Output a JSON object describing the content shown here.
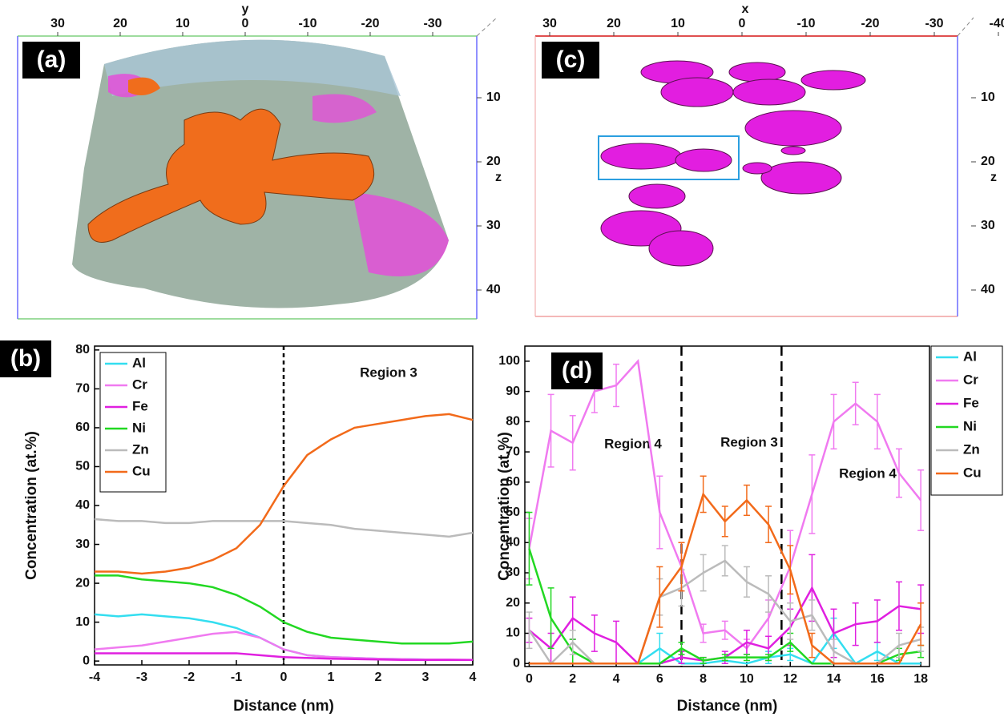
{
  "images": [
    {
      "panel_label": "(a)",
      "top_axis_label": "y",
      "top_ticks": [
        30,
        20,
        10,
        0,
        -10,
        -20,
        -30
      ],
      "right_axis_label": "z",
      "right_ticks": [
        10,
        20,
        30,
        40
      ]
    },
    {
      "panel_label": "(c)",
      "top_axis_label": "x",
      "top_ticks": [
        30,
        20,
        10,
        0,
        -10,
        -20,
        -30,
        -40
      ],
      "right_axis_label": "z",
      "right_ticks": [
        10,
        20,
        30,
        40
      ]
    }
  ],
  "chart_data": [
    {
      "type": "line",
      "panel_label": "(b)",
      "x_label": "Distance (nm)",
      "y_label": "Concentration (at.%)",
      "x": [
        -4,
        -3.5,
        -3,
        -2.5,
        -2,
        -1.5,
        -1,
        -0.5,
        0,
        0.5,
        1,
        1.5,
        2,
        2.5,
        3,
        3.5,
        4
      ],
      "series": [
        {
          "name": "Al",
          "color": "#33def0",
          "values": [
            12,
            11.5,
            12,
            11.5,
            11,
            10,
            8.5,
            6,
            3,
            1.5,
            1,
            0.8,
            0.6,
            0.5,
            0.4,
            0.3,
            0.3
          ]
        },
        {
          "name": "Cr",
          "color": "#f07af0",
          "values": [
            3,
            3.5,
            4,
            5,
            6,
            7,
            7.5,
            6,
            3,
            1.5,
            1,
            0.8,
            0.6,
            0.5,
            0.4,
            0.4,
            0.3
          ]
        },
        {
          "name": "Fe",
          "color": "#e020e0",
          "values": [
            2,
            2,
            2,
            2,
            2,
            2,
            2,
            1.5,
            1,
            0.8,
            0.6,
            0.5,
            0.4,
            0.3,
            0.3,
            0.3,
            0.3
          ]
        },
        {
          "name": "Ni",
          "color": "#22d822",
          "values": [
            22,
            22,
            21,
            20.5,
            20,
            19,
            17,
            14,
            10,
            7.5,
            6,
            5.5,
            5,
            4.5,
            4.5,
            4.5,
            5
          ]
        },
        {
          "name": "Zn",
          "color": "#bbbbbb",
          "values": [
            36.5,
            36,
            36,
            35.5,
            35.5,
            36,
            36,
            36,
            36,
            35.5,
            35,
            34,
            33.5,
            33,
            32.5,
            32,
            33
          ]
        },
        {
          "name": "Cu",
          "color": "#f26a1a",
          "values": [
            23,
            23,
            22.5,
            23,
            24,
            26,
            29,
            35,
            45,
            53,
            57,
            60,
            61,
            62,
            63,
            63.5,
            62
          ]
        }
      ],
      "xlim": [
        -4,
        4
      ],
      "xticks": [
        -4,
        -3,
        -2,
        -1,
        0,
        1,
        2,
        3,
        4
      ],
      "ylim": [
        -1,
        81
      ],
      "yticks": [
        0,
        10,
        20,
        30,
        40,
        50,
        60,
        70,
        80
      ],
      "vlines": [
        0
      ],
      "annotations": [
        "Region 3"
      ],
      "legend": "upper-left"
    },
    {
      "type": "line",
      "panel_label": "(d)",
      "x_label": "Distance (nm)",
      "y_label": "Concentration (at.%)",
      "x": [
        0,
        1,
        2,
        3,
        4,
        5,
        6,
        7,
        8,
        9,
        10,
        11,
        12,
        13,
        14,
        15,
        16,
        17,
        18
      ],
      "series": [
        {
          "name": "Al",
          "color": "#33def0",
          "values": [
            0,
            0,
            0,
            0,
            0,
            0,
            5,
            0,
            0,
            1,
            0,
            2,
            3,
            0,
            10,
            0,
            4,
            0,
            0
          ],
          "errors": [
            0,
            0,
            0,
            0,
            0,
            0,
            5,
            0,
            0,
            1,
            0,
            2,
            2,
            0,
            5,
            0,
            3,
            0,
            0
          ]
        },
        {
          "name": "Cr",
          "color": "#f07af0",
          "values": [
            38,
            77,
            73,
            90,
            92,
            100,
            50,
            32,
            10,
            11,
            5,
            15,
            32,
            56,
            80,
            86,
            80,
            63,
            54
          ],
          "errors": [
            10,
            12,
            9,
            7,
            7,
            0,
            12,
            8,
            3,
            3,
            3,
            6,
            12,
            13,
            9,
            7,
            9,
            8,
            10
          ]
        },
        {
          "name": "Fe",
          "color": "#e020e0",
          "values": [
            11,
            5,
            15,
            10,
            7,
            0,
            0,
            2,
            1,
            2,
            7,
            5,
            12,
            25,
            10,
            13,
            14,
            19,
            18
          ],
          "errors": [
            4,
            5,
            7,
            6,
            7,
            0,
            0,
            2,
            1,
            2,
            4,
            4,
            6,
            11,
            8,
            7,
            7,
            8,
            8
          ]
        },
        {
          "name": "Ni",
          "color": "#22d822",
          "values": [
            38,
            15,
            4,
            0,
            0,
            0,
            0,
            5,
            1,
            2,
            2,
            2,
            7,
            0,
            0,
            0,
            0,
            3,
            4
          ],
          "errors": [
            12,
            10,
            4,
            0,
            0,
            0,
            0,
            2,
            1,
            1,
            1,
            1,
            3,
            0,
            0,
            0,
            0,
            2,
            2
          ]
        },
        {
          "name": "Zn",
          "color": "#bbbbbb",
          "values": [
            11,
            0,
            7,
            0,
            0,
            0,
            22,
            25,
            30,
            34,
            27,
            23,
            14,
            16,
            4,
            0,
            0,
            6,
            8
          ],
          "errors": [
            6,
            0,
            4,
            0,
            0,
            0,
            6,
            6,
            6,
            5,
            5,
            6,
            6,
            5,
            4,
            0,
            0,
            4,
            4
          ]
        },
        {
          "name": "Cu",
          "color": "#f26a1a",
          "values": [
            0,
            0,
            0,
            0,
            0,
            0,
            22,
            32,
            56,
            47,
            54,
            46,
            31,
            6,
            0,
            0,
            0,
            0,
            13
          ],
          "errors": [
            0,
            0,
            0,
            0,
            0,
            0,
            10,
            8,
            6,
            5,
            5,
            6,
            8,
            4,
            0,
            0,
            0,
            0,
            7
          ]
        }
      ],
      "xlim": [
        -0.2,
        18.4
      ],
      "xticks": [
        0,
        2,
        4,
        6,
        8,
        10,
        12,
        14,
        16,
        18
      ],
      "ylim": [
        -1,
        105
      ],
      "yticks": [
        0,
        10,
        20,
        30,
        40,
        50,
        60,
        70,
        80,
        90,
        100
      ],
      "vlines": [
        7,
        11.6
      ],
      "annotations": [
        "Region 4",
        "Region 3",
        "Region 4"
      ],
      "legend": "right-outside"
    }
  ]
}
